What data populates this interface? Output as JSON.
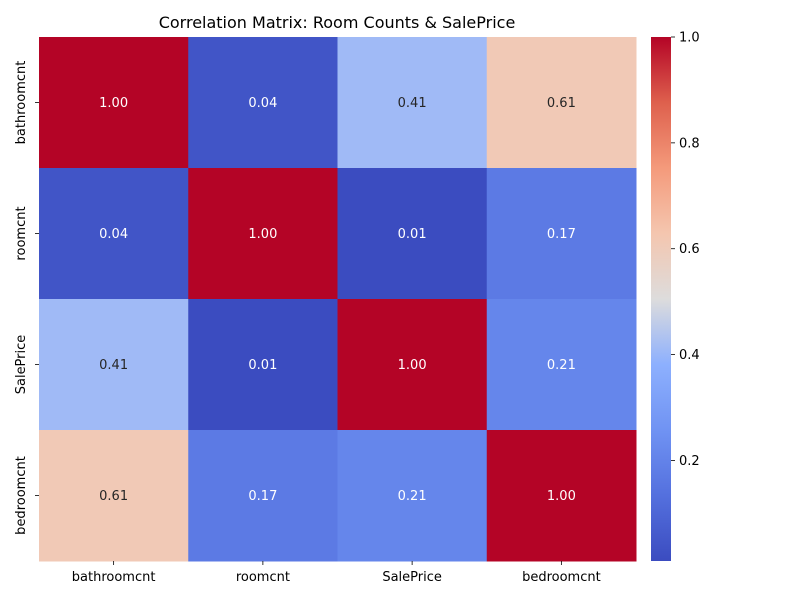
{
  "chart_data": {
    "type": "heatmap",
    "title": "Correlation Matrix: Room Counts & SalePrice",
    "x_labels": [
      "bathroomcnt",
      "roomcnt",
      "SalePrice",
      "bedroomcnt"
    ],
    "y_labels": [
      "bathroomcnt",
      "roomcnt",
      "SalePrice",
      "bedroomcnt"
    ],
    "values": [
      [
        1.0,
        0.04,
        0.41,
        0.61
      ],
      [
        0.04,
        1.0,
        0.01,
        0.17
      ],
      [
        0.41,
        0.01,
        1.0,
        0.21
      ],
      [
        0.61,
        0.17,
        0.21,
        1.0
      ]
    ],
    "annotations": [
      [
        "1.00",
        "0.04",
        "0.41",
        "0.61"
      ],
      [
        "0.04",
        "1.00",
        "0.01",
        "0.17"
      ],
      [
        "0.41",
        "0.01",
        "1.00",
        "0.21"
      ],
      [
        "0.61",
        "0.17",
        "0.21",
        "1.00"
      ]
    ],
    "colormap": "coolwarm",
    "colorbar": {
      "vmin": 0.01,
      "vmax": 1.0,
      "ticks": [
        0.2,
        0.4,
        0.6,
        0.8,
        1.0
      ],
      "tick_labels": [
        "0.2",
        "0.4",
        "0.6",
        "0.8",
        "1.0"
      ],
      "placement": "right"
    },
    "grid": false,
    "legend": "colorbar-right"
  }
}
